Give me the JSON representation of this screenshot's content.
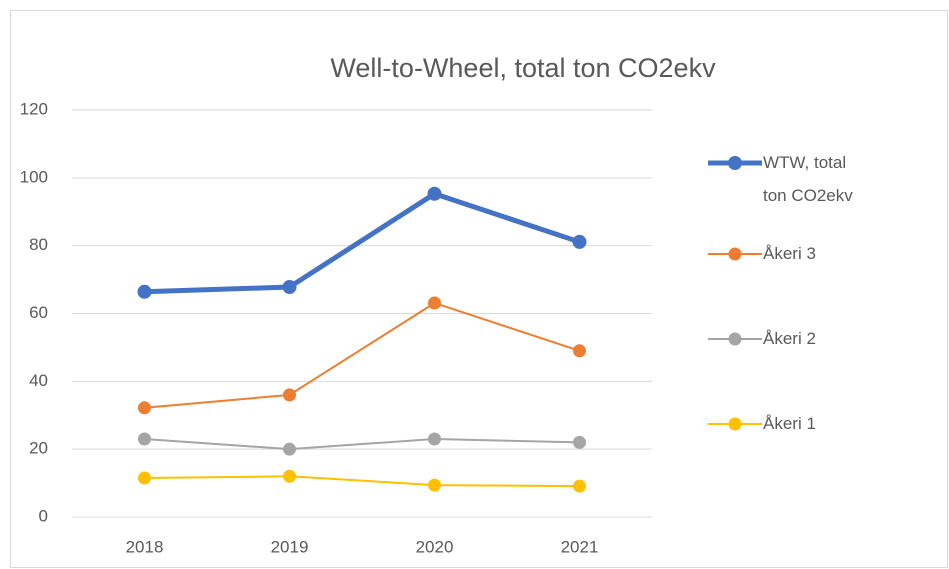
{
  "chart_data": {
    "type": "line",
    "title": "Well-to-Wheel, total ton CO2ekv",
    "categories": [
      "2018",
      "2019",
      "2020",
      "2021"
    ],
    "series": [
      {
        "name": "WTW, total ton CO2ekv",
        "color": "#4472c4",
        "values": [
          66.4,
          67.8,
          95.3,
          81.1
        ]
      },
      {
        "name": "Åkeri 3",
        "color": "#ed7d31",
        "values": [
          32.2,
          36,
          63.1,
          49
        ]
      },
      {
        "name": "Åkeri 2",
        "color": "#a5a5a5",
        "values": [
          23,
          20,
          23,
          22
        ]
      },
      {
        "name": "Åkeri 1",
        "color": "#ffc000",
        "values": [
          11.5,
          12,
          9.4,
          9.1
        ]
      }
    ],
    "ylim": [
      0,
      120
    ],
    "yticks": [
      0,
      20,
      40,
      60,
      80,
      100,
      120
    ],
    "grid": true,
    "legend": "right"
  }
}
